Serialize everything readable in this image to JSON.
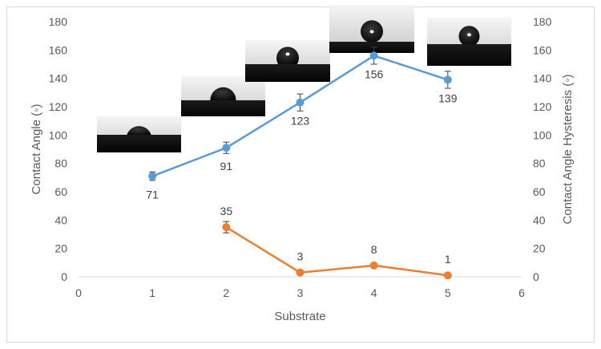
{
  "chart_data": {
    "type": "line",
    "title": "",
    "xlabel": "Substrate",
    "ylabel": "Contact Angle (◦)",
    "y2label": "Contact Angle Hysteresis (◦)",
    "xlim": [
      0,
      6
    ],
    "ylim": [
      0,
      180
    ],
    "y2lim": [
      0,
      180
    ],
    "x_ticks": [
      0,
      1,
      2,
      3,
      4,
      5,
      6
    ],
    "y_ticks": [
      0,
      20,
      40,
      60,
      80,
      100,
      120,
      140,
      160,
      180
    ],
    "grid": false,
    "legend": "none",
    "series": [
      {
        "key": "contact_angle",
        "axis": "left",
        "color": "#5b9bd5",
        "x": [
          1,
          2,
          3,
          4,
          5
        ],
        "values": [
          71,
          91,
          123,
          156,
          139
        ],
        "error": [
          3,
          4,
          6,
          6,
          6
        ],
        "labels": [
          "71",
          "91",
          "123",
          "156",
          "139"
        ]
      },
      {
        "key": "hysteresis",
        "axis": "right",
        "color": "#ed7d31",
        "x": [
          2,
          3,
          4,
          5
        ],
        "values": [
          35,
          3,
          8,
          1
        ],
        "error": [
          4,
          0,
          0,
          0
        ],
        "labels": [
          "35",
          "3",
          "8",
          "1"
        ]
      }
    ],
    "droplet_images": [
      {
        "substrate": 1,
        "angle": 71
      },
      {
        "substrate": 2,
        "angle": 91
      },
      {
        "substrate": 3,
        "angle": 123
      },
      {
        "substrate": 4,
        "angle": 156
      },
      {
        "substrate": 5,
        "angle": 139
      }
    ]
  }
}
